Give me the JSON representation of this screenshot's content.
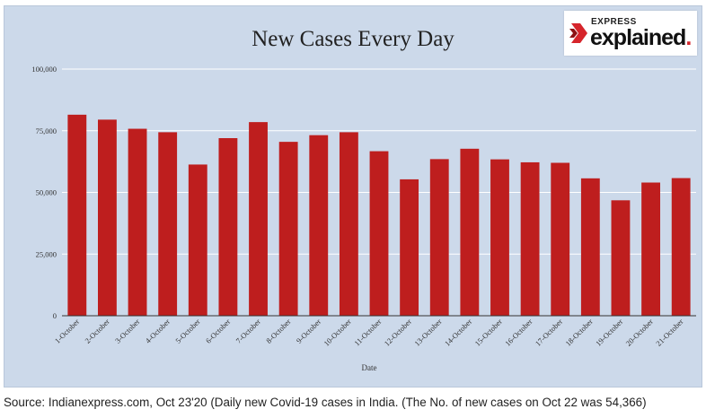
{
  "chart_data": {
    "type": "bar",
    "title": "New Cases Every Day",
    "xlabel": "Date",
    "ylabel": "",
    "ylim": [
      0,
      100000
    ],
    "yticks": [
      "0",
      "25,000",
      "50,000",
      "75,000",
      "100,000"
    ],
    "ytick_values": [
      0,
      25000,
      50000,
      75000,
      100000
    ],
    "categories": [
      "1-October",
      "2-October",
      "3-October",
      "4-October",
      "5-October",
      "6-October",
      "7-October",
      "8-October",
      "9-October",
      "10-October",
      "11-October",
      "12-October",
      "13-October",
      "14-October",
      "15-October",
      "16-October",
      "17-October",
      "18-October",
      "19-October",
      "20-October",
      "21-October"
    ],
    "values": [
      81500,
      79500,
      75800,
      74400,
      61300,
      72000,
      78500,
      70500,
      73200,
      74400,
      66700,
      55300,
      63500,
      67700,
      63400,
      62200,
      62000,
      55700,
      46800,
      54000,
      55800
    ],
    "bar_color": "#be1e1e",
    "grid": true
  },
  "logo": {
    "top": "EXPRESS",
    "main": "explained",
    "dot": "."
  },
  "caption": "Source: Indianexpress.com, Oct 23'20 (Daily new Covid-19 cases in India. (The No. of new cases on Oct 22 was 54,366)"
}
